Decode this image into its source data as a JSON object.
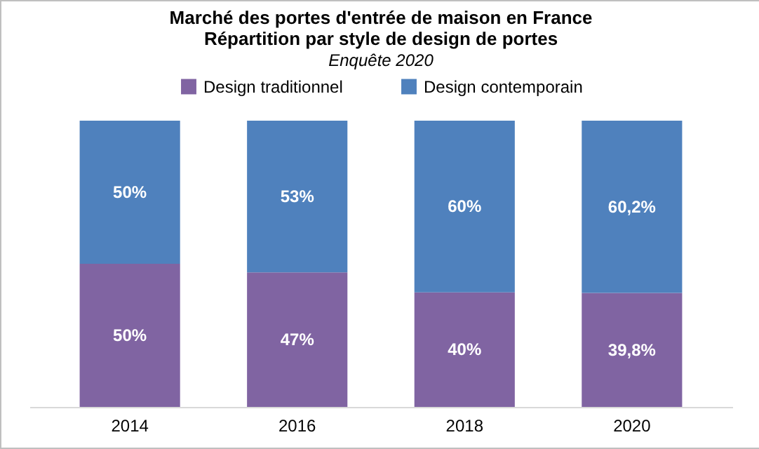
{
  "chart_data": {
    "type": "bar",
    "title": "Marché des portes d'entrée de maison en France\nRépartition  par style de design de portes",
    "subtitle": "Enquête 2020",
    "categories": [
      "2014",
      "2016",
      "2018",
      "2020"
    ],
    "stacked": true,
    "ylim": [
      0,
      100
    ],
    "tick_labels": "x",
    "legend": "top",
    "series": [
      {
        "name": "Design traditionnel",
        "color": "#8064a2",
        "values": [
          50,
          47,
          40,
          39.8
        ],
        "value_labels": [
          "50%",
          "47%",
          "40%",
          "39,8%"
        ]
      },
      {
        "name": "Design contemporain",
        "color": "#4f81bd",
        "values": [
          50,
          53,
          60,
          60.2
        ],
        "value_labels": [
          "50%",
          "53%",
          "60%",
          "60,2%"
        ]
      }
    ]
  }
}
